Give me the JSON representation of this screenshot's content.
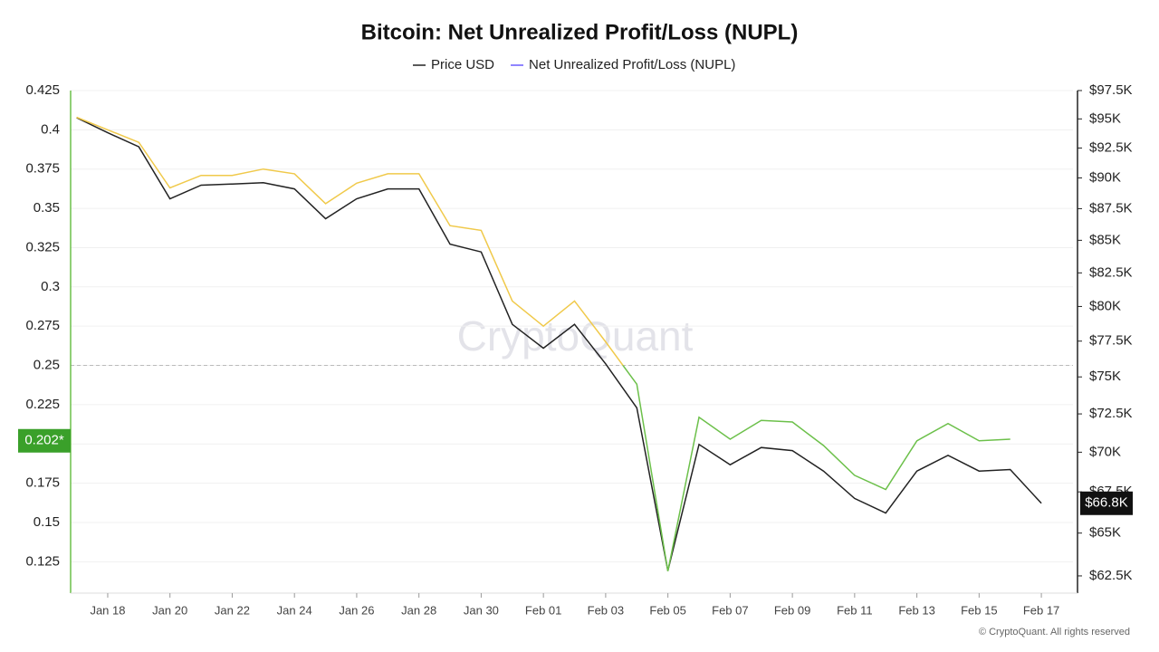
{
  "chart_data": {
    "type": "line",
    "title": "Bitcoin: Net Unrealized Profit/Loss (NUPL)",
    "watermark": "CryptoQuant",
    "footer": "© CryptoQuant. All rights reserved",
    "categories": [
      null,
      "Jan 18",
      null,
      "Jan 20",
      null,
      "Jan 22",
      null,
      "Jan 24",
      null,
      "Jan 26",
      null,
      "Jan 28",
      null,
      "Jan 30",
      null,
      "Feb 01",
      null,
      "Feb 03",
      null,
      "Feb 05",
      null,
      "Feb 07",
      null,
      "Feb 09",
      null,
      "Feb 11",
      null,
      "Feb 13",
      null,
      "Feb 15",
      null,
      "Feb 17"
    ],
    "series": [
      {
        "name": "Price USD",
        "color": "#222222",
        "axis": "y2",
        "values": [
          95100,
          93800,
          92600,
          88300,
          89400,
          89500,
          89600,
          89100,
          86700,
          88300,
          89100,
          89100,
          84700,
          84100,
          78700,
          77000,
          78700,
          75900,
          72900,
          62800,
          70500,
          69200,
          70300,
          70100,
          68800,
          67100,
          66200,
          68800,
          69800,
          68800,
          68900,
          66800
        ]
      },
      {
        "name": "Net Unrealized Profit/Loss (NUPL)",
        "color": "#6b5cff",
        "axis": "y",
        "above_color": "#f0c94a",
        "below_color": "#6cc04a",
        "threshold": 0.25,
        "values": [
          0.408,
          0.4,
          0.392,
          0.363,
          0.371,
          0.371,
          0.375,
          0.372,
          0.353,
          0.366,
          0.372,
          0.372,
          0.339,
          0.336,
          0.291,
          0.275,
          0.291,
          0.265,
          0.238,
          0.119,
          0.217,
          0.203,
          0.215,
          0.214,
          0.199,
          0.18,
          0.171,
          0.202,
          0.213,
          0.202,
          0.203,
          null
        ]
      }
    ],
    "ylim": [
      0.105,
      0.425
    ],
    "yticks": [
      0.125,
      0.15,
      0.175,
      0.2,
      0.225,
      0.25,
      0.275,
      0.3,
      0.325,
      0.35,
      0.375,
      0.4,
      0.425
    ],
    "y2lim": [
      61520,
      97500
    ],
    "y2_log": true,
    "y2ticks": [
      {
        "value": 62500,
        "label": "$62.5K"
      },
      {
        "value": 65000,
        "label": "$65K"
      },
      {
        "value": 67500,
        "label": "$67.5K"
      },
      {
        "value": 70000,
        "label": "$70K"
      },
      {
        "value": 72500,
        "label": "$72.5K"
      },
      {
        "value": 75000,
        "label": "$75K"
      },
      {
        "value": 77500,
        "label": "$77.5K"
      },
      {
        "value": 80000,
        "label": "$80K"
      },
      {
        "value": 82500,
        "label": "$82.5K"
      },
      {
        "value": 85000,
        "label": "$85K"
      },
      {
        "value": 87500,
        "label": "$87.5K"
      },
      {
        "value": 90000,
        "label": "$90K"
      },
      {
        "value": 92500,
        "label": "$92.5K"
      },
      {
        "value": 95000,
        "label": "$95K"
      },
      {
        "value": 97500,
        "label": "$97.5K"
      }
    ],
    "reference_line": 0.25,
    "y_tag": {
      "value": 0.202,
      "label": "0.202*"
    },
    "y2_tag": {
      "value": 66800,
      "label": "$66.8K"
    },
    "grid": true
  }
}
